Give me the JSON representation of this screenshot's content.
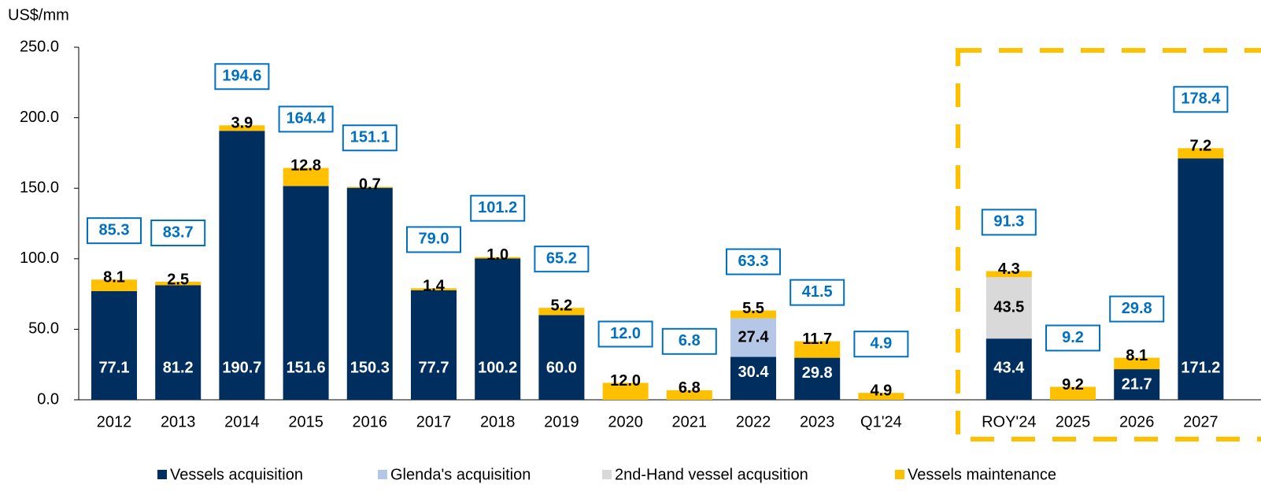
{
  "chart_data": {
    "type": "stacked_bar",
    "y_label": "US$/mm",
    "categories": [
      "2012",
      "2013",
      "2014",
      "2015",
      "2016",
      "2017",
      "2018",
      "2019",
      "2020",
      "2021",
      "2022",
      "2023",
      "Q1'24",
      null,
      "ROY'24",
      "2025",
      "2026",
      "2027"
    ],
    "series": [
      {
        "name": "Vessels acquisition",
        "color": "#002f5f",
        "label_color": "#ffffff",
        "values": [
          77.1,
          81.2,
          190.7,
          151.6,
          150.3,
          77.7,
          100.2,
          60.0,
          null,
          null,
          30.4,
          29.8,
          null,
          null,
          43.4,
          null,
          21.7,
          171.2
        ],
        "value_labels": [
          "77.1",
          "81.2",
          "190.7",
          "151.6",
          "150.3",
          "77.7",
          "100.2",
          "60.0",
          null,
          null,
          "30.4",
          "29.8",
          null,
          null,
          "43.4",
          null,
          "21.7",
          "171.2"
        ]
      },
      {
        "name": "Glenda's acquisition",
        "color": "#b4c7e7",
        "label_color": "#000000",
        "values": [
          null,
          null,
          null,
          null,
          null,
          null,
          null,
          null,
          null,
          null,
          27.4,
          null,
          null,
          null,
          null,
          null,
          null,
          null
        ],
        "value_labels": [
          null,
          null,
          null,
          null,
          null,
          null,
          null,
          null,
          null,
          null,
          "27.4",
          null,
          null,
          null,
          null,
          null,
          null,
          null
        ]
      },
      {
        "name": "2nd-Hand vessel acqusition",
        "color": "#d9d9d9",
        "label_color": "#000000",
        "values": [
          null,
          null,
          null,
          null,
          null,
          null,
          null,
          null,
          null,
          null,
          null,
          null,
          null,
          null,
          43.5,
          null,
          null,
          null
        ],
        "value_labels": [
          null,
          null,
          null,
          null,
          null,
          null,
          null,
          null,
          null,
          null,
          null,
          null,
          null,
          null,
          "43.5",
          null,
          null,
          null
        ]
      },
      {
        "name": "Vessels maintenance",
        "color": "#ffc000",
        "label_color": "#000000",
        "values": [
          8.1,
          2.5,
          3.9,
          12.8,
          0.7,
          1.4,
          1.0,
          5.2,
          12.0,
          6.8,
          5.5,
          11.7,
          4.9,
          null,
          4.3,
          9.2,
          8.1,
          7.2
        ],
        "value_labels": [
          "8.1",
          "2.5",
          "3.9",
          "12.8",
          "0.7",
          "1.4",
          "1.0",
          "5.2",
          "12.0",
          "6.8",
          "5.5",
          "11.7",
          "4.9",
          null,
          "4.3",
          "9.2",
          "8.1",
          "7.2"
        ]
      }
    ],
    "totals": {
      "values": [
        85.3,
        83.7,
        194.6,
        164.4,
        151.1,
        79.0,
        101.2,
        65.2,
        12.0,
        6.8,
        63.3,
        41.5,
        4.9,
        null,
        91.3,
        9.2,
        29.8,
        178.4
      ],
      "value_labels": [
        "85.3",
        "83.7",
        "194.6",
        "164.4",
        "151.1",
        "79.0",
        "101.2",
        "65.2",
        "12.0",
        "6.8",
        "63.3",
        "41.5",
        "4.9",
        null,
        "91.3",
        "9.2",
        "29.8",
        "178.4"
      ],
      "color": "#0070c0"
    },
    "ylim": [
      0,
      250
    ],
    "yticks": [
      {
        "value": 0,
        "label": "0.0"
      },
      {
        "value": 50,
        "label": "50.0"
      },
      {
        "value": 100,
        "label": "100.0"
      },
      {
        "value": 150,
        "label": "150.0"
      },
      {
        "value": 200,
        "label": "200.0"
      },
      {
        "value": 250,
        "label": "250.0"
      }
    ],
    "legend": "bottom"
  }
}
